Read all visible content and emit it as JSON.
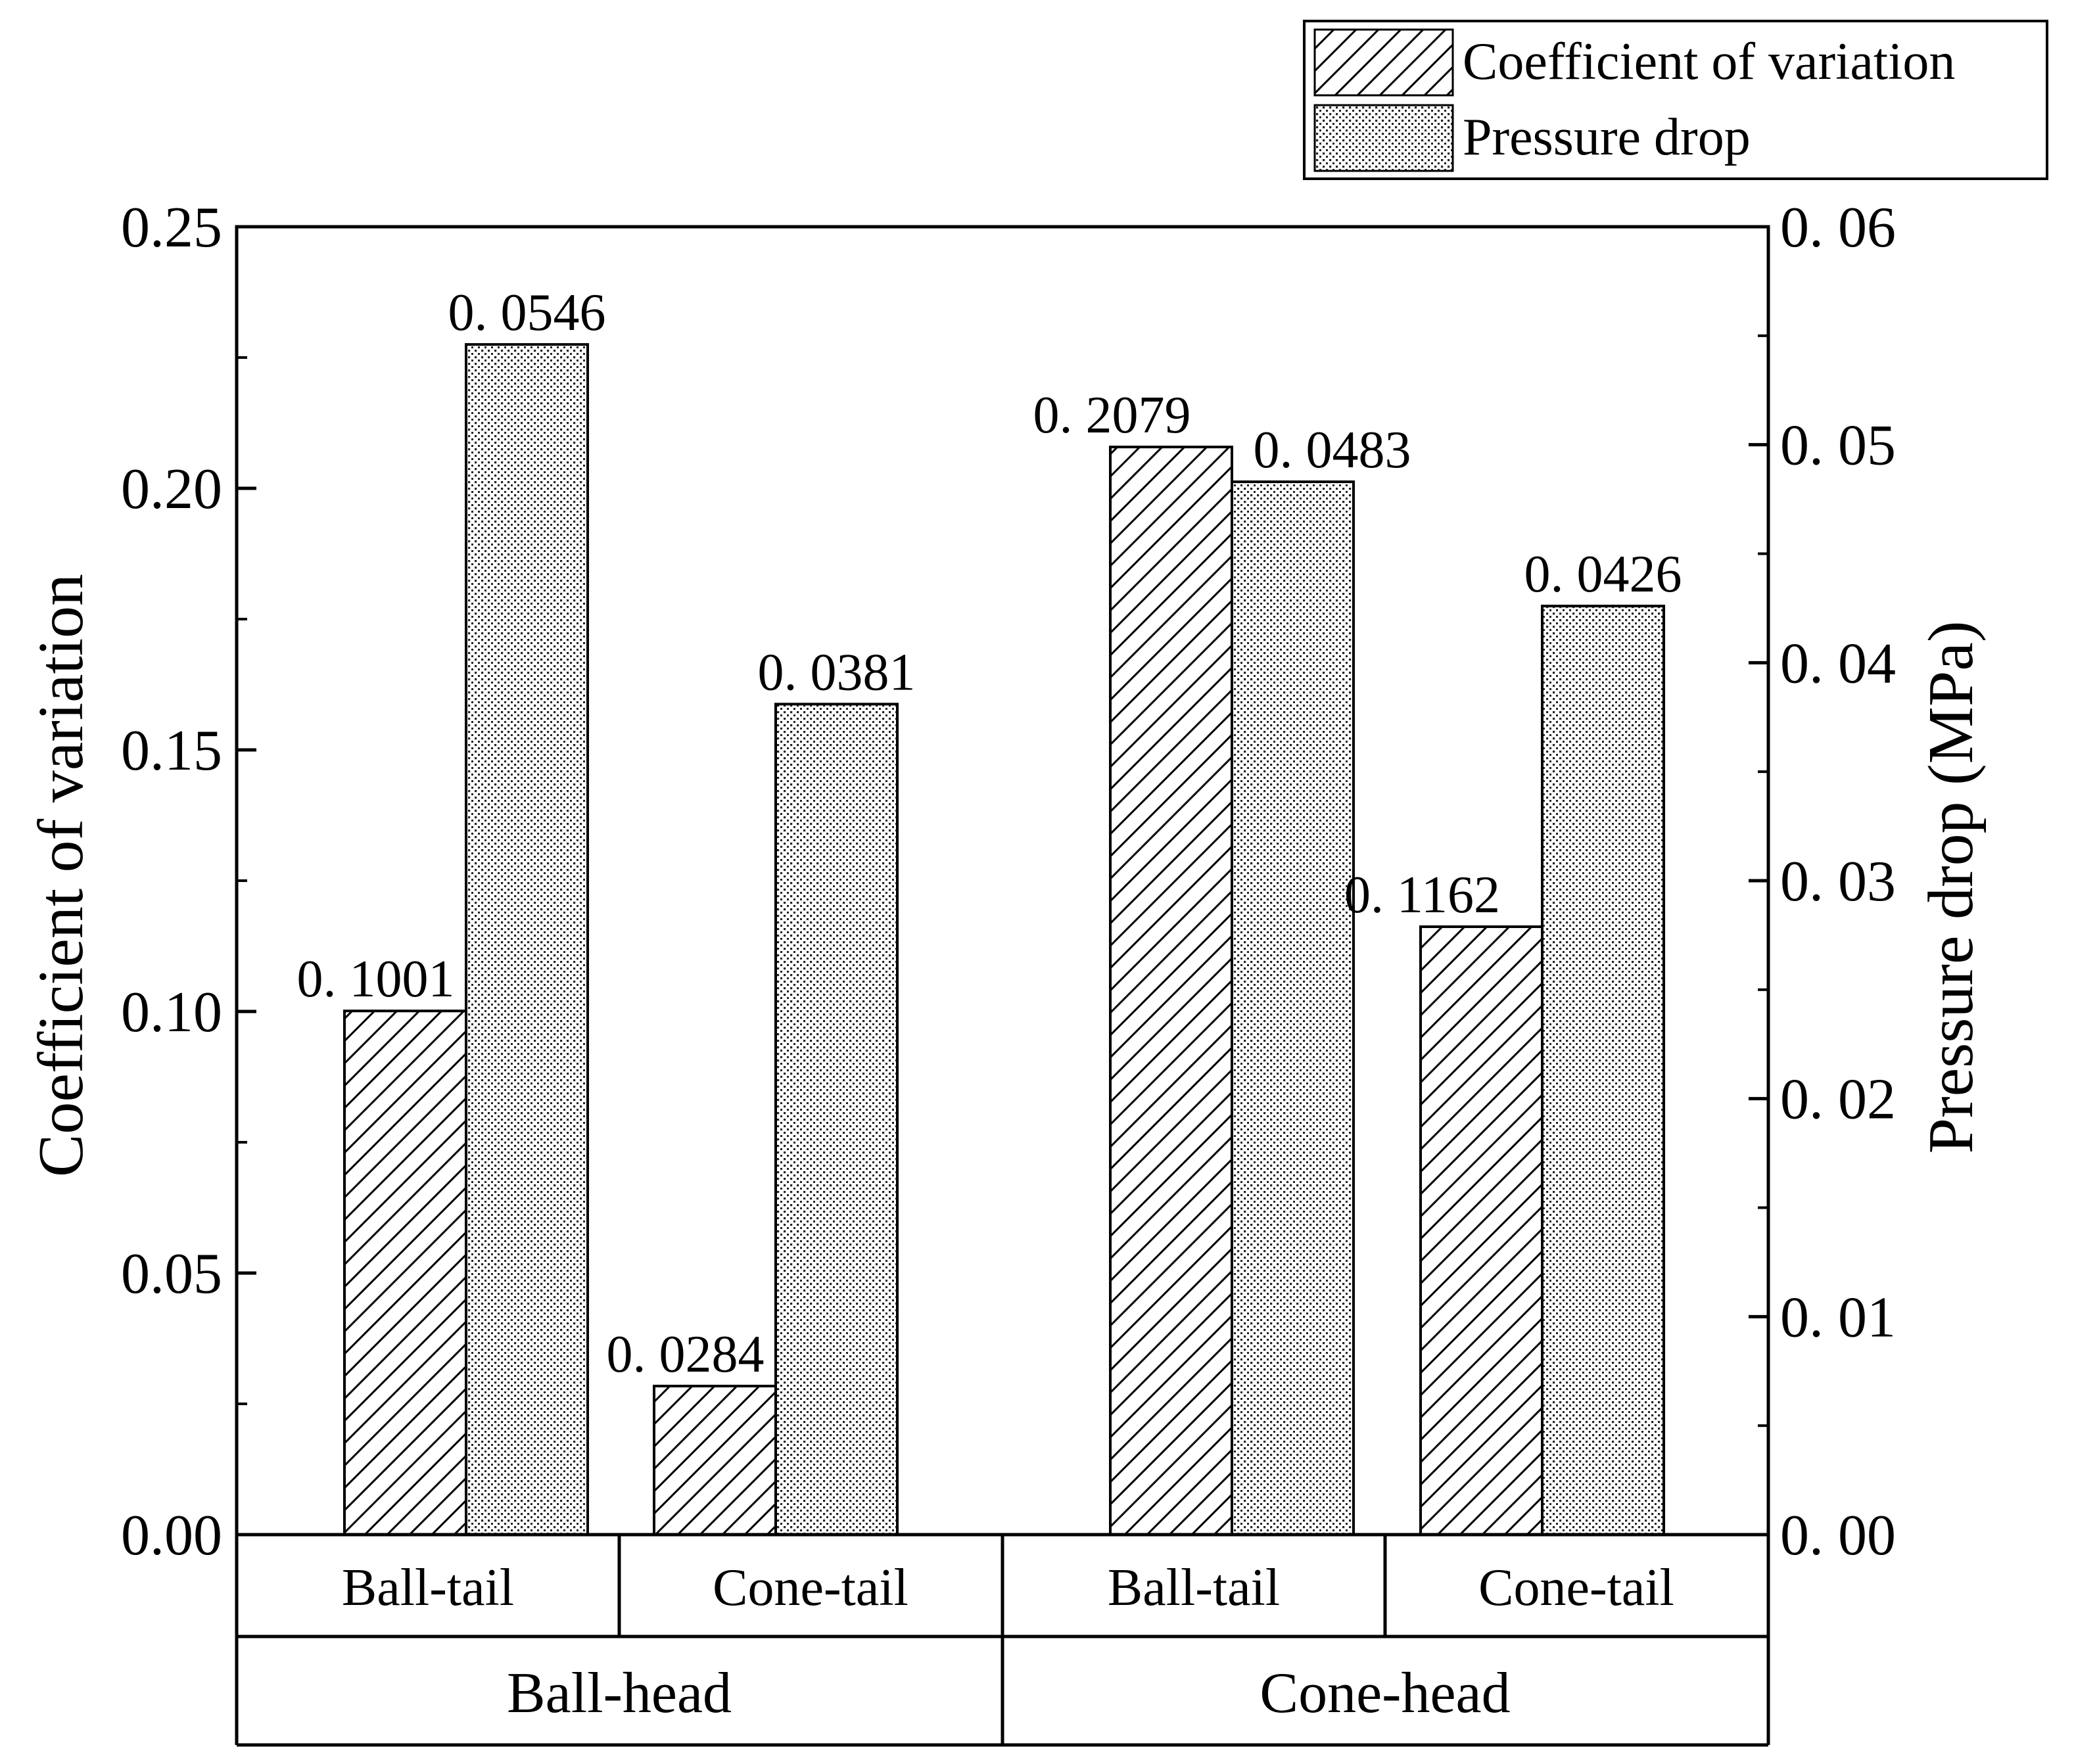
{
  "chart_data": {
    "type": "bar",
    "groups": [
      "Ball-head",
      "Cone-head"
    ],
    "categories": [
      "Ball-tail",
      "Cone-tail",
      "Ball-tail",
      "Cone-tail"
    ],
    "series": [
      {
        "name": "Coefficient of variation",
        "axis": "left",
        "pattern": "hatch",
        "values": [
          0.1001,
          0.0284,
          0.2079,
          0.1162
        ],
        "labels": [
          "0. 1001",
          "0. 0284",
          "0. 2079",
          "0. 1162"
        ]
      },
      {
        "name": "Pressure drop",
        "axis": "right",
        "pattern": "dots",
        "values": [
          0.0546,
          0.0381,
          0.0483,
          0.0426
        ],
        "labels": [
          "0. 0546",
          "0. 0381",
          "0. 0483",
          "0. 0426"
        ]
      }
    ],
    "ylabel": "Coefficient of variation",
    "y2label": "Pressure drop (MPa)",
    "ylim": [
      0,
      0.25
    ],
    "y2lim": [
      0,
      0.06
    ],
    "yticks": [
      "0.00",
      "0.05",
      "0.10",
      "0.15",
      "0.20",
      "0.25"
    ],
    "y2ticks": [
      "0. 00",
      "0. 01",
      "0. 02",
      "0. 03",
      "0. 04",
      "0. 05",
      "0. 06"
    ],
    "legend_position": "top-right"
  }
}
